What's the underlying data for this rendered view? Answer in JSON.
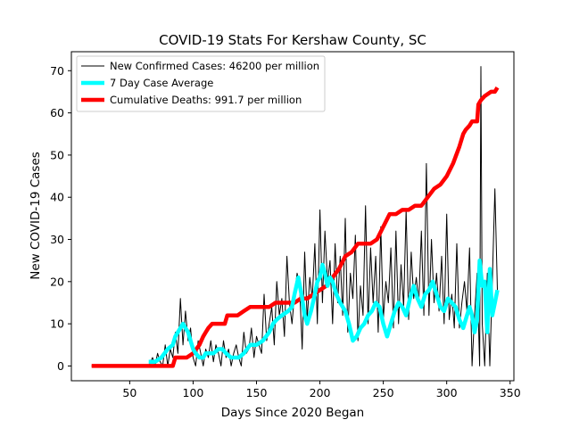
{
  "chart_data": {
    "type": "line",
    "title": "COVID-19 Stats For Kershaw County, SC",
    "xlabel": "Days Since 2020 Began",
    "ylabel": "New COVID-19 Cases",
    "xlim": [
      4,
      353
    ],
    "ylim": [
      -3.5,
      74.5
    ],
    "xticks": [
      50,
      100,
      150,
      200,
      250,
      300,
      350
    ],
    "yticks": [
      0,
      10,
      20,
      30,
      40,
      50,
      60,
      70
    ],
    "grid": false,
    "legend_position": "top-left",
    "series": [
      {
        "name": "New Confirmed Cases: 46200 per million",
        "color": "#000000",
        "style": "thin",
        "x": [
          20,
          30,
          40,
          50,
          60,
          65,
          68,
          70,
          72,
          74,
          76,
          78,
          80,
          82,
          84,
          86,
          88,
          90,
          92,
          94,
          96,
          98,
          100,
          102,
          104,
          106,
          108,
          110,
          112,
          114,
          116,
          118,
          120,
          122,
          124,
          126,
          128,
          130,
          132,
          134,
          136,
          138,
          140,
          142,
          144,
          146,
          148,
          150,
          152,
          154,
          156,
          158,
          160,
          162,
          164,
          166,
          168,
          170,
          172,
          174,
          176,
          178,
          180,
          182,
          184,
          186,
          188,
          190,
          192,
          194,
          196,
          198,
          200,
          202,
          204,
          206,
          208,
          210,
          212,
          214,
          216,
          218,
          220,
          222,
          224,
          226,
          228,
          230,
          232,
          234,
          236,
          238,
          240,
          242,
          244,
          246,
          248,
          250,
          252,
          254,
          256,
          258,
          260,
          262,
          264,
          266,
          268,
          270,
          272,
          274,
          276,
          278,
          280,
          282,
          284,
          286,
          288,
          290,
          292,
          294,
          296,
          298,
          300,
          302,
          304,
          306,
          308,
          310,
          312,
          314,
          316,
          318,
          320,
          322,
          324,
          326,
          327,
          328,
          330,
          332,
          334,
          336,
          338,
          340
        ],
        "y": [
          0,
          0,
          0,
          0,
          0,
          0,
          2,
          0,
          3,
          1,
          0,
          5,
          0,
          4,
          2,
          8,
          3,
          16,
          5,
          13,
          6,
          9,
          2,
          0,
          6,
          3,
          0,
          4,
          2,
          6,
          1,
          5,
          3,
          0,
          6,
          2,
          4,
          0,
          3,
          5,
          2,
          0,
          8,
          3,
          4,
          9,
          2,
          7,
          5,
          3,
          17,
          6,
          10,
          14,
          5,
          20,
          12,
          16,
          7,
          26,
          15,
          10,
          17,
          22,
          19,
          4,
          27,
          11,
          21,
          16,
          29,
          10,
          37,
          15,
          32,
          20,
          25,
          10,
          29,
          15,
          26,
          12,
          35,
          8,
          22,
          16,
          31,
          6,
          19,
          12,
          38,
          10,
          28,
          15,
          26,
          8,
          33,
          11,
          20,
          15,
          28,
          9,
          32,
          10,
          24,
          14,
          37,
          11,
          27,
          16,
          21,
          15,
          32,
          12,
          48,
          12,
          30,
          15,
          22,
          13,
          26,
          10,
          36,
          11,
          17,
          9,
          29,
          9,
          15,
          20,
          13,
          28,
          0,
          12,
          22,
          0,
          71,
          10,
          0,
          22,
          0,
          20,
          42,
          18
        ]
      },
      {
        "name": "7 Day Case Average",
        "color": "#00ffff",
        "style": "thick",
        "x": [
          65,
          70,
          75,
          80,
          84,
          86,
          88,
          90,
          92,
          94,
          96,
          98,
          100,
          102,
          105,
          108,
          110,
          113,
          116,
          120,
          123,
          126,
          130,
          133,
          136,
          140,
          145,
          150,
          155,
          160,
          163,
          166,
          170,
          175,
          178,
          180,
          183,
          186,
          188,
          190,
          193,
          196,
          198,
          200,
          202,
          204,
          206,
          208,
          210,
          213,
          216,
          220,
          223,
          226,
          229,
          232,
          235,
          238,
          241,
          244,
          247,
          250,
          253,
          256,
          259,
          262,
          265,
          268,
          271,
          274,
          277,
          280,
          283,
          286,
          289,
          292,
          295,
          298,
          301,
          304,
          307,
          310,
          313,
          316,
          318,
          320,
          322,
          324,
          326,
          328,
          330,
          332,
          334,
          336,
          338,
          340
        ],
        "y": [
          1,
          1,
          2,
          4,
          5,
          7,
          8,
          9,
          10,
          9,
          8,
          6,
          4,
          3,
          2,
          2,
          3,
          3,
          3,
          4,
          4,
          3,
          2,
          2,
          2,
          3,
          5,
          5,
          6,
          8,
          10,
          11,
          12,
          13,
          14,
          17,
          21,
          16,
          12,
          10,
          13,
          17,
          20,
          21,
          24,
          22,
          19,
          21,
          20,
          17,
          15,
          13,
          10,
          6,
          7,
          9,
          10,
          12,
          13,
          15,
          14,
          10,
          7,
          10,
          13,
          15,
          14,
          12,
          16,
          19,
          16,
          14,
          17,
          18,
          20,
          17,
          14,
          13,
          16,
          15,
          14,
          11,
          9,
          12,
          14,
          12,
          8,
          11,
          25,
          19,
          20,
          8,
          23,
          12,
          15,
          18
        ]
      },
      {
        "name": "Cumulative Deaths: 991.7 per million",
        "color": "#ff0000",
        "style": "thick",
        "x": [
          20,
          84,
          86,
          95,
          100,
          105,
          108,
          110,
          112,
          115,
          120,
          125,
          127,
          130,
          135,
          140,
          145,
          150,
          155,
          160,
          165,
          170,
          175,
          180,
          185,
          190,
          195,
          200,
          205,
          210,
          215,
          220,
          225,
          230,
          235,
          240,
          245,
          250,
          255,
          260,
          265,
          270,
          275,
          280,
          285,
          290,
          295,
          300,
          305,
          310,
          313,
          315,
          318,
          320,
          322,
          324,
          325,
          327,
          330,
          335,
          338,
          340
        ],
        "y": [
          0,
          0,
          2,
          2,
          3,
          5,
          7,
          8,
          9,
          10,
          10,
          10,
          12,
          12,
          12,
          13,
          14,
          14,
          14,
          14,
          15,
          15,
          15,
          15,
          16,
          16,
          17,
          18,
          19,
          21,
          23,
          26,
          27,
          29,
          29,
          29,
          30,
          33,
          36,
          36,
          37,
          37,
          38,
          38,
          40,
          42,
          43,
          45,
          48,
          52,
          55,
          56,
          57,
          58,
          58,
          58,
          62,
          63,
          64,
          65,
          65,
          66
        ]
      }
    ]
  }
}
